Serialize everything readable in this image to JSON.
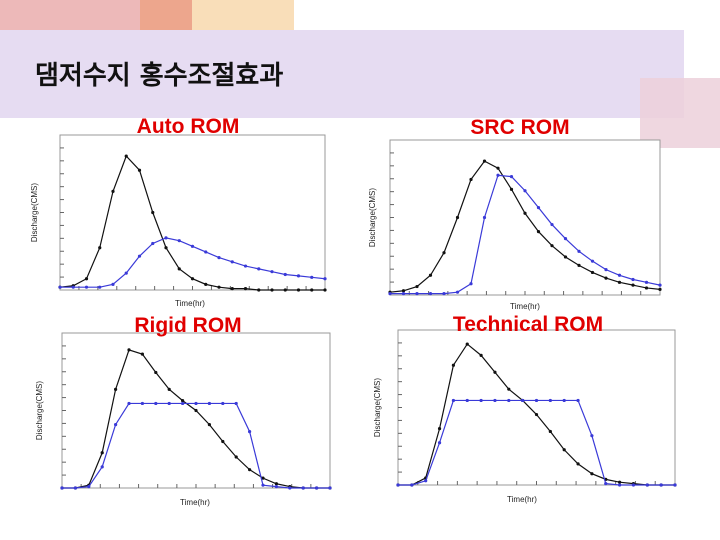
{
  "header": {
    "title": "댐저수지 홍수조절효과"
  },
  "chart_data": [
    {
      "type": "line",
      "title": "Auto ROM",
      "x_label": "Time(hr)",
      "y_label": "Discharge(CMS)",
      "x": [
        0,
        5,
        10,
        15,
        20,
        25,
        30,
        35,
        40,
        45,
        50,
        55,
        60,
        65,
        70,
        75,
        80,
        85,
        90,
        95,
        100
      ],
      "xlim": [
        0,
        100
      ],
      "ylim": [
        0,
        110
      ],
      "series": [
        {
          "color": "#111111",
          "values": [
            2,
            3,
            8,
            30,
            70,
            95,
            85,
            55,
            30,
            15,
            8,
            4,
            2,
            1,
            1,
            0,
            0,
            0,
            0,
            0,
            0
          ]
        },
        {
          "color": "#3a3ad8",
          "values": [
            2,
            2,
            2,
            2,
            4,
            12,
            24,
            33,
            37,
            35,
            31,
            27,
            23,
            20,
            17,
            15,
            13,
            11,
            10,
            9,
            8
          ]
        }
      ]
    },
    {
      "type": "line",
      "title": "SRC ROM",
      "x_label": "Time(hr)",
      "y_label": "Discharge(CMS)",
      "x": [
        0,
        5,
        10,
        15,
        20,
        25,
        30,
        35,
        40,
        45,
        50,
        55,
        60,
        65,
        70,
        75,
        80,
        85,
        90,
        95,
        100
      ],
      "xlim": [
        0,
        100
      ],
      "ylim": [
        0,
        110
      ],
      "series": [
        {
          "color": "#111111",
          "values": [
            2,
            3,
            6,
            14,
            30,
            55,
            82,
            95,
            90,
            75,
            58,
            45,
            35,
            27,
            21,
            16,
            12,
            9,
            7,
            5,
            4
          ]
        },
        {
          "color": "#3a3ad8",
          "values": [
            1,
            1,
            1,
            1,
            1,
            2,
            8,
            55,
            85,
            84,
            74,
            62,
            50,
            40,
            31,
            24,
            18,
            14,
            11,
            9,
            7
          ]
        }
      ]
    },
    {
      "type": "line",
      "title": "Rigid ROM",
      "x_label": "Time(hr)",
      "y_label": "Discharge(CMS)",
      "x": [
        0,
        5,
        10,
        15,
        20,
        25,
        30,
        35,
        40,
        45,
        50,
        55,
        60,
        65,
        70,
        75,
        80,
        85,
        90,
        95,
        100
      ],
      "xlim": [
        0,
        100
      ],
      "ylim": [
        0,
        110
      ],
      "series": [
        {
          "color": "#111111",
          "values": [
            0,
            0,
            2,
            25,
            70,
            98,
            95,
            82,
            70,
            62,
            55,
            45,
            33,
            22,
            13,
            7,
            3,
            1,
            0,
            0,
            0
          ]
        },
        {
          "color": "#3a3ad8",
          "values": [
            0,
            0,
            1,
            15,
            45,
            60,
            60,
            60,
            60,
            60,
            60,
            60,
            60,
            60,
            40,
            2,
            1,
            0,
            0,
            0,
            0
          ]
        }
      ]
    },
    {
      "type": "line",
      "title": "Technical ROM",
      "x_label": "Time(hr)",
      "y_label": "Discharge(CMS)",
      "x": [
        0,
        5,
        10,
        15,
        20,
        25,
        30,
        35,
        40,
        45,
        50,
        55,
        60,
        65,
        70,
        75,
        80,
        85,
        90,
        95,
        100
      ],
      "xlim": [
        0,
        100
      ],
      "ylim": [
        0,
        110
      ],
      "series": [
        {
          "color": "#111111",
          "values": [
            0,
            0,
            5,
            40,
            85,
            100,
            92,
            80,
            68,
            60,
            50,
            38,
            25,
            15,
            8,
            4,
            2,
            1,
            0,
            0,
            0
          ]
        },
        {
          "color": "#3a3ad8",
          "values": [
            0,
            0,
            3,
            30,
            60,
            60,
            60,
            60,
            60,
            60,
            60,
            60,
            60,
            60,
            35,
            1,
            0,
            0,
            0,
            0,
            0
          ]
        }
      ]
    }
  ]
}
